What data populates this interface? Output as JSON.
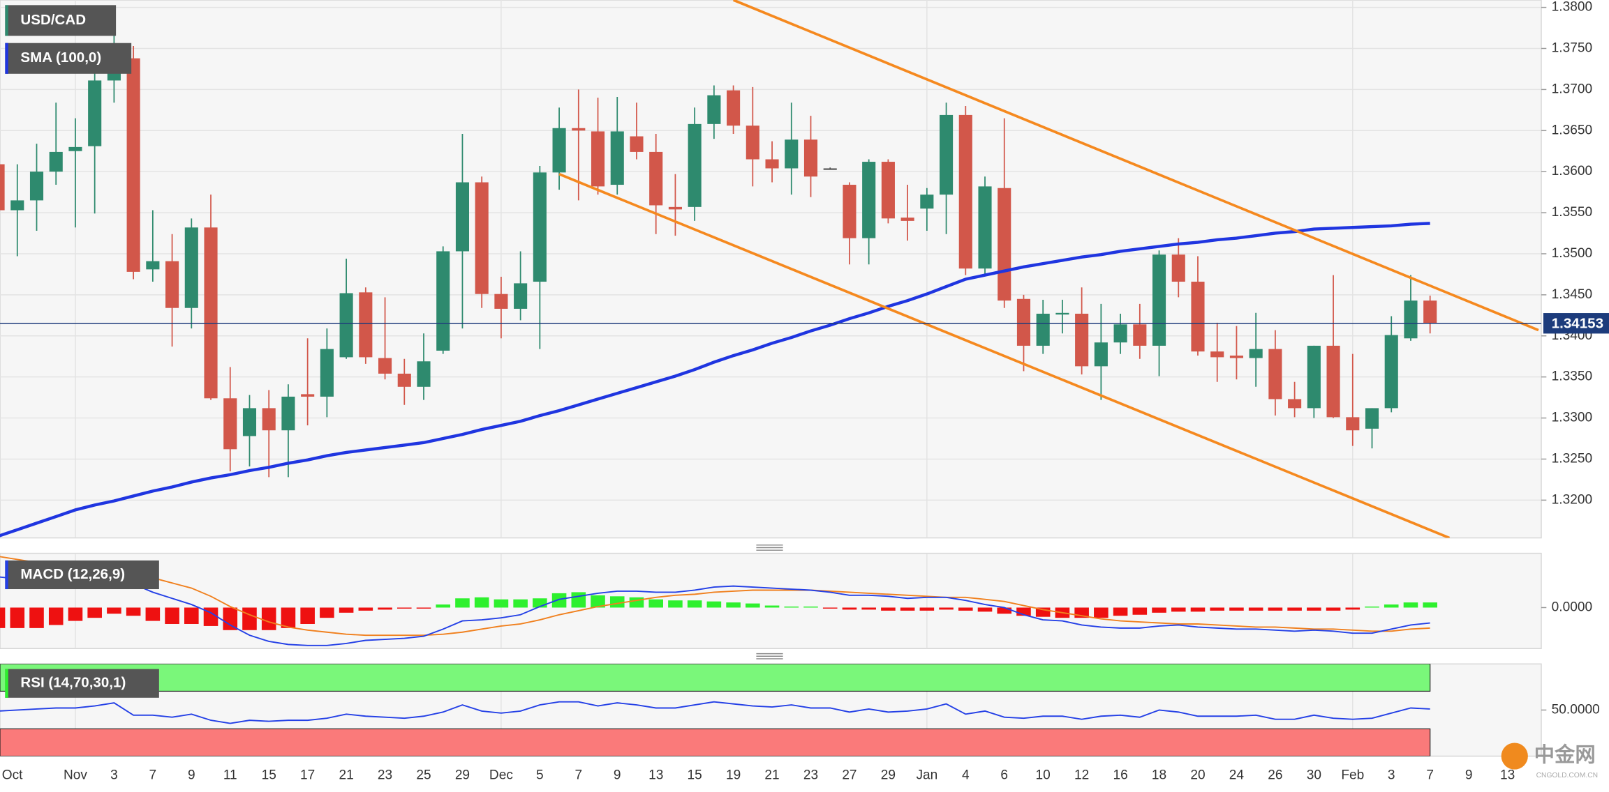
{
  "chart_data": [
    {
      "type": "candlestick",
      "categories": [
        "Oct",
        null,
        null,
        null,
        "Nov",
        null,
        "3",
        null,
        "7",
        null,
        "9",
        null,
        "11",
        null,
        "15",
        null,
        "17",
        null,
        "21",
        null,
        "23",
        null,
        "25",
        null,
        "29",
        null,
        "Dec",
        null,
        "5",
        null,
        "7",
        null,
        "9",
        null,
        "13",
        null,
        "15",
        null,
        "19",
        null,
        "21",
        null,
        "23",
        null,
        "27",
        null,
        "29",
        null,
        "Jan",
        null,
        "4",
        null,
        "6",
        null,
        "10",
        null,
        "12",
        null,
        "16",
        null,
        "18",
        null,
        "20",
        null,
        "24",
        null,
        "26",
        null,
        "30",
        null,
        "Feb",
        null,
        "3",
        null,
        "7",
        null,
        "9",
        null,
        "13"
      ],
      "series": [
        {
          "name": "USD/CAD",
          "up_color": "#2e8a6e",
          "down_color": "#d2574a",
          "open": [
            1.3609,
            1.3553,
            1.3565,
            1.36,
            1.3625,
            1.3631,
            1.3711,
            1.3738,
            1.3481,
            1.3491,
            1.3434,
            1.3532,
            1.3324,
            1.3278,
            1.3312,
            1.3285,
            1.3329,
            1.3326,
            1.3374,
            1.3453,
            1.3373,
            1.3354,
            1.3338,
            1.3382,
            1.3503,
            1.3587,
            1.3451,
            1.3433,
            1.3466,
            1.3599,
            1.3653,
            1.3649,
            1.3584,
            1.3643,
            1.3624,
            1.3557,
            1.3557,
            1.3658,
            1.3699,
            1.3656,
            1.3615,
            1.3604,
            1.3639,
            1.3604,
            1.3584,
            1.3519,
            1.3612,
            1.3544,
            1.3555,
            1.3572,
            1.3669,
            1.3482,
            1.358,
            1.3445,
            1.3388,
            1.3426,
            1.3427,
            1.3363,
            1.3392,
            1.3414,
            1.3388,
            1.3499,
            1.3466,
            1.3381,
            1.3376,
            1.3373,
            1.3384,
            1.3323,
            1.3312,
            1.3388,
            1.3301,
            1.3287,
            1.3312,
            1.3397,
            1.3443,
            null,
            null,
            null,
            null
          ],
          "high": [
            1.3621,
            1.3609,
            1.3634,
            1.3684,
            1.3665,
            1.3721,
            1.3796,
            1.3753,
            1.3553,
            1.3524,
            1.3543,
            1.3572,
            1.3362,
            1.3328,
            1.3334,
            1.3341,
            1.3397,
            1.3409,
            1.3494,
            1.3459,
            1.3447,
            1.3372,
            1.3403,
            1.3509,
            1.3646,
            1.3594,
            1.3472,
            1.3503,
            1.3607,
            1.3678,
            1.37,
            1.369,
            1.3691,
            1.3684,
            1.3646,
            1.3597,
            1.3678,
            1.3705,
            1.3705,
            1.3703,
            1.3637,
            1.3684,
            1.3668,
            1.3605,
            1.3587,
            1.3615,
            1.3615,
            1.3584,
            1.358,
            1.3684,
            1.368,
            1.3594,
            1.3665,
            1.345,
            1.3444,
            1.3444,
            1.3459,
            1.3439,
            1.3427,
            1.3439,
            1.3504,
            1.3519,
            1.3497,
            1.3416,
            1.3412,
            1.3428,
            1.3407,
            1.3344,
            1.3388,
            1.3474,
            1.3378,
            1.3312,
            1.3424,
            1.3474,
            1.3449,
            null,
            null,
            null,
            null
          ],
          "low": [
            1.354,
            1.3497,
            1.3528,
            1.3584,
            1.3532,
            1.3549,
            1.3684,
            1.3469,
            1.3466,
            1.3387,
            1.3409,
            1.3322,
            1.3235,
            1.3241,
            1.3228,
            1.3228,
            1.3291,
            1.3301,
            1.3372,
            1.3366,
            1.3347,
            1.3316,
            1.3322,
            1.3378,
            1.3409,
            1.3434,
            1.3397,
            1.3419,
            1.3384,
            1.3578,
            1.3565,
            1.3572,
            1.3572,
            1.3615,
            1.3524,
            1.3522,
            1.354,
            1.364,
            1.3646,
            1.3582,
            1.3587,
            1.3572,
            1.3569,
            1.3603,
            1.3487,
            1.3487,
            1.3537,
            1.3516,
            1.3528,
            1.3524,
            1.3474,
            1.3474,
            1.3434,
            1.3357,
            1.3378,
            1.3403,
            1.3353,
            1.3322,
            1.3378,
            1.3372,
            1.3351,
            1.3447,
            1.3376,
            1.3344,
            1.3347,
            1.3338,
            1.3303,
            1.3301,
            1.33,
            1.33,
            1.3266,
            1.3263,
            1.3307,
            1.3394,
            1.3403,
            null,
            null,
            null,
            null
          ],
          "close": [
            1.3553,
            1.3565,
            1.36,
            1.3624,
            1.363,
            1.3711,
            1.3746,
            1.3478,
            1.3491,
            1.3434,
            1.3532,
            1.3324,
            1.3262,
            1.3312,
            1.3285,
            1.3326,
            1.3326,
            1.3384,
            1.3452,
            1.3374,
            1.3354,
            1.3338,
            1.3369,
            1.3503,
            1.3587,
            1.3451,
            1.3433,
            1.3464,
            1.3599,
            1.3653,
            1.365,
            1.3582,
            1.3649,
            1.3624,
            1.3559,
            1.3554,
            1.3658,
            1.3693,
            1.3656,
            1.3615,
            1.3604,
            1.3639,
            1.3594,
            1.3604,
            1.3519,
            1.3612,
            1.3543,
            1.354,
            1.3572,
            1.3669,
            1.3482,
            1.3582,
            1.3443,
            1.3388,
            1.3427,
            1.3428,
            1.3363,
            1.3392,
            1.3414,
            1.3388,
            1.3499,
            1.3466,
            1.3381,
            1.3374,
            1.3373,
            1.3384,
            1.3323,
            1.3312,
            1.3388,
            1.3301,
            1.3285,
            1.3312,
            1.3401,
            1.3443,
            1.34153,
            null,
            null,
            null,
            null
          ]
        },
        {
          "name": "SMA (100,0)",
          "color": "#1f35e0",
          "values": [
            1.3156,
            1.3164,
            1.3172,
            1.318,
            1.3188,
            1.3194,
            1.3199,
            1.3205,
            1.3211,
            1.3216,
            1.3222,
            1.3227,
            1.3231,
            1.3236,
            1.324,
            1.3245,
            1.3249,
            1.3254,
            1.3258,
            1.3261,
            1.3264,
            1.3267,
            1.327,
            1.3275,
            1.328,
            1.3286,
            1.3291,
            1.3296,
            1.3303,
            1.3309,
            1.3316,
            1.3323,
            1.333,
            1.3337,
            1.3344,
            1.3351,
            1.3359,
            1.3368,
            1.3376,
            1.3383,
            1.3391,
            1.3398,
            1.3406,
            1.3413,
            1.3421,
            1.3428,
            1.3436,
            1.3443,
            1.3451,
            1.346,
            1.3469,
            1.3474,
            1.3479,
            1.3484,
            1.3488,
            1.3492,
            1.3496,
            1.3499,
            1.3503,
            1.3506,
            1.3509,
            1.3512,
            1.3514,
            1.3517,
            1.3519,
            1.3522,
            1.3525,
            1.3527,
            1.353,
            1.3531,
            1.3532,
            1.3533,
            1.3534,
            1.3536,
            1.3537,
            null,
            null,
            null,
            null
          ]
        }
      ],
      "trendlines": [
        {
          "color": "#f5891f",
          "x": [
            38,
            79.6
          ],
          "y": [
            1.3809,
            1.3407
          ]
        },
        {
          "color": "#f5891f",
          "x": [
            29,
            75
          ],
          "y": [
            1.3597,
            1.3154
          ]
        }
      ],
      "last_price": 1.34153,
      "last_price_color": "#1d3c7c",
      "ylim": [
        1.3154,
        1.3809
      ],
      "yticks": [
        {
          "value": 1.32,
          "label": "1.3200"
        },
        {
          "value": 1.325,
          "label": "1.3250"
        },
        {
          "value": 1.33,
          "label": "1.3300"
        },
        {
          "value": 1.335,
          "label": "1.3350"
        },
        {
          "value": 1.34,
          "label": "1.3400"
        },
        {
          "value": 1.345,
          "label": "1.3450"
        },
        {
          "value": 1.35,
          "label": "1.3500"
        },
        {
          "value": 1.355,
          "label": "1.3550"
        },
        {
          "value": 1.36,
          "label": "1.3600"
        },
        {
          "value": 1.365,
          "label": "1.3650"
        },
        {
          "value": 1.37,
          "label": "1.3700"
        },
        {
          "value": 1.375,
          "label": "1.3750"
        },
        {
          "value": 1.38,
          "label": "1.3800"
        }
      ],
      "grid": true
    },
    {
      "type": "macd",
      "title": "MACD (12,26,9)",
      "ylim": [
        -0.004,
        0.0053
      ],
      "yticks": [
        {
          "value": 0,
          "label": "0.0000"
        }
      ],
      "macd_color": "#2440e6",
      "signal_color": "#f0801e",
      "hist_up_color": "#2ef02e",
      "hist_down_color": "#ee1111",
      "macd": [
        0.003,
        0.0028,
        0.0027,
        0.0027,
        0.0027,
        0.0029,
        0.003,
        0.0023,
        0.0015,
        0.0009,
        0.0003,
        -0.0005,
        -0.0017,
        -0.0027,
        -0.0033,
        -0.0036,
        -0.0037,
        -0.0037,
        -0.0035,
        -0.0032,
        -0.0031,
        -0.003,
        -0.0028,
        -0.0021,
        -0.0013,
        -0.0012,
        -0.001,
        -0.0007,
        0.0001,
        0.0008,
        0.0011,
        0.0014,
        0.0016,
        0.0016,
        0.0015,
        0.0015,
        0.0017,
        0.002,
        0.0021,
        0.002,
        0.0019,
        0.0018,
        0.0017,
        0.0015,
        0.0012,
        0.0012,
        0.0011,
        0.0009,
        0.001,
        0.001,
        0.0007,
        0.0003,
        0,
        -0.0007,
        -0.0012,
        -0.0013,
        -0.0017,
        -0.0019,
        -0.002,
        -0.002,
        -0.0018,
        -0.0017,
        -0.0019,
        -0.002,
        -0.0021,
        -0.0021,
        -0.0022,
        -0.0023,
        -0.0022,
        -0.0023,
        -0.0025,
        -0.0025,
        -0.0021,
        -0.0017,
        -0.0015,
        null,
        null,
        null,
        null
      ],
      "signal": [
        0.005,
        0.0047,
        0.0044,
        0.0041,
        0.0039,
        0.0037,
        0.0036,
        0.0034,
        0.0029,
        0.0024,
        0.0019,
        0.0011,
        0.0001,
        -0.0007,
        -0.0014,
        -0.0019,
        -0.0022,
        -0.0024,
        -0.0026,
        -0.0027,
        -0.0027,
        -0.0027,
        -0.0027,
        -0.0026,
        -0.0024,
        -0.0021,
        -0.0018,
        -0.0016,
        -0.0012,
        -0.0007,
        -0.0003,
        0.0001,
        0.0004,
        0.0007,
        0.001,
        0.0012,
        0.0013,
        0.0015,
        0.0016,
        0.0017,
        0.0017,
        0.0017,
        0.0017,
        0.0016,
        0.0015,
        0.0014,
        0.0013,
        0.0012,
        0.0011,
        0.001,
        0.001,
        0.0008,
        0.0006,
        0.0002,
        -0.0002,
        -0.0005,
        -0.0008,
        -0.0011,
        -0.0013,
        -0.0014,
        -0.0015,
        -0.0016,
        -0.0016,
        -0.0017,
        -0.0018,
        -0.0019,
        -0.0019,
        -0.002,
        -0.0021,
        -0.0021,
        -0.0022,
        -0.0023,
        -0.0023,
        -0.0021,
        -0.002,
        null,
        null,
        null,
        null
      ],
      "histogram": [
        -0.002,
        -0.002,
        -0.002,
        -0.0017,
        -0.0013,
        -0.001,
        -0.0006,
        -0.0008,
        -0.0013,
        -0.0016,
        -0.0016,
        -0.0018,
        -0.0022,
        -0.0022,
        -0.0022,
        -0.002,
        -0.0016,
        -0.001,
        -0.0005,
        -0.0003,
        -0.0002,
        -0.0001,
        -0.0001,
        0.0003,
        0.0009,
        0.001,
        0.0008,
        0.0008,
        0.0009,
        0.0014,
        0.0015,
        0.0012,
        0.0011,
        0.001,
        0.0008,
        0.0007,
        0.0007,
        0.0006,
        0.0005,
        0.0004,
        0.0002,
        0.0001,
        0.0001,
        -0.0001,
        -0.0002,
        -0.0002,
        -0.0003,
        -0.0003,
        -0.0003,
        -0.0002,
        -0.0003,
        -0.0004,
        -0.0006,
        -0.0008,
        -0.0009,
        -0.001,
        -0.001,
        -0.001,
        -0.0008,
        -0.0007,
        -0.0005,
        -0.0004,
        -0.0004,
        -0.0003,
        -0.0003,
        -0.0003,
        -0.0003,
        -0.0003,
        -0.0003,
        -0.0003,
        -0.0002,
        0.0001,
        0.0003,
        0.0005,
        0.0005,
        null,
        null,
        null,
        null
      ]
    },
    {
      "type": "rsi",
      "title": "RSI (14,70,30,1)",
      "color": "#2440e6",
      "ylim": [
        1,
        99
      ],
      "yticks": [
        {
          "value": 50,
          "label": "50.0000"
        }
      ],
      "upper_band": 70,
      "lower_band": 30,
      "upper_color": "#7af77a",
      "lower_color": "#fa7a7a",
      "values": [
        48.9,
        50.0,
        51.1,
        52.2,
        52.2,
        54.4,
        57.6,
        44.6,
        44.6,
        42.4,
        45.6,
        39.1,
        35.8,
        39.1,
        38.0,
        39.1,
        39.1,
        41.3,
        45.6,
        43.5,
        42.4,
        41.3,
        43.5,
        47.8,
        55.4,
        48.9,
        46.7,
        48.9,
        55.4,
        58.7,
        58.7,
        54.4,
        57.6,
        55.4,
        52.2,
        52.2,
        55.4,
        58.7,
        56.5,
        54.4,
        53.3,
        55.4,
        52.2,
        52.2,
        47.8,
        51.1,
        47.8,
        48.9,
        51.1,
        56.5,
        45.6,
        48.9,
        42.4,
        41.3,
        43.5,
        43.5,
        40.2,
        43.5,
        44.6,
        42.4,
        50.0,
        47.8,
        43.5,
        43.5,
        43.5,
        44.6,
        40.2,
        40.2,
        44.6,
        41.3,
        40.2,
        41.3,
        46.7,
        52.2,
        51.1,
        null,
        null,
        null,
        null
      ]
    }
  ],
  "watermark": {
    "text": "中金网",
    "subtext": "CNGOLD.COM.CN"
  }
}
